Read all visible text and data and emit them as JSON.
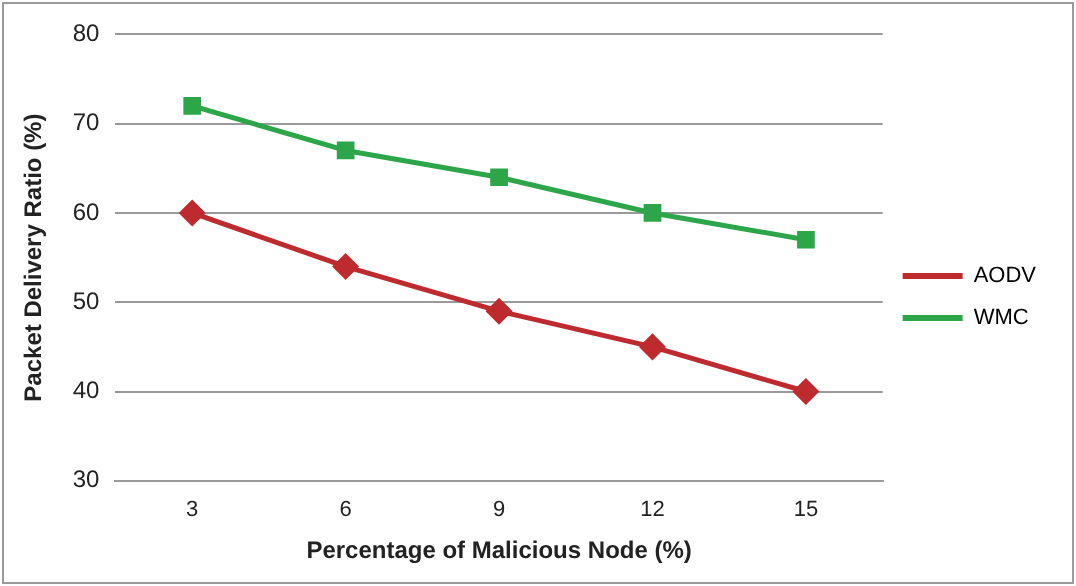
{
  "chart_data": {
    "type": "line",
    "xlabel": "Percentage of Malicious Node (%)",
    "ylabel": "Packet Delivery Ratio (%)",
    "categories": [
      "3",
      "6",
      "9",
      "12",
      "15"
    ],
    "series": [
      {
        "name": "AODV",
        "color": "#be2b2e",
        "marker": "diamond",
        "values": [
          60,
          54,
          49,
          45,
          40
        ]
      },
      {
        "name": "WMC",
        "color": "#2da64a",
        "marker": "square",
        "values": [
          72,
          67,
          64,
          60,
          57
        ]
      }
    ],
    "ylim": [
      30,
      80
    ],
    "yticks": [
      30,
      40,
      50,
      60,
      70,
      80
    ],
    "grid": "y",
    "legend": "right",
    "line_style": "solid"
  }
}
